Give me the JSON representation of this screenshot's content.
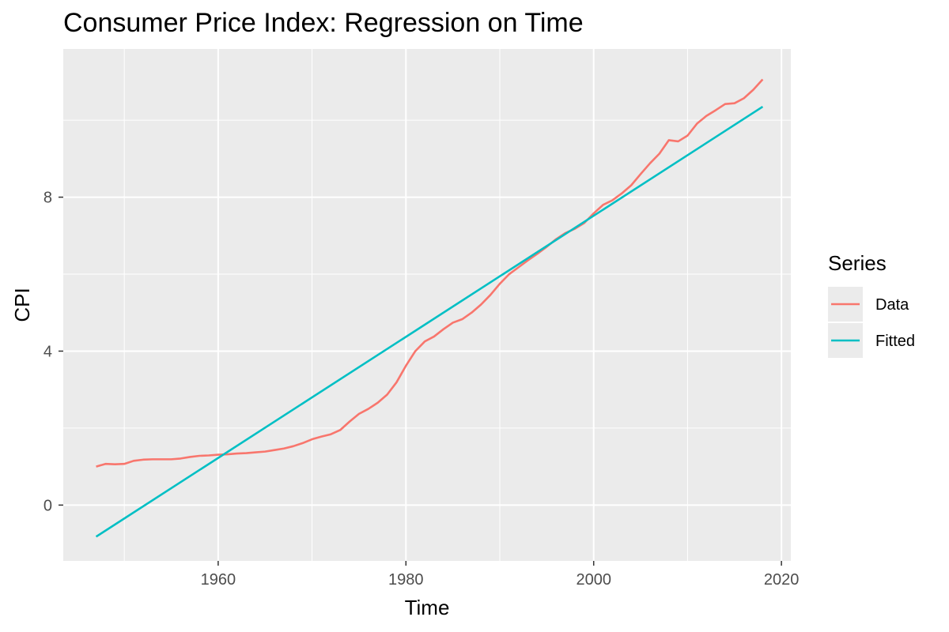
{
  "chart_data": {
    "type": "line",
    "title": "Consumer Price Index: Regression on Time",
    "xlabel": "Time",
    "ylabel": "CPI",
    "xlim": [
      1943.5,
      2021
    ],
    "ylim": [
      -1.45,
      11.85
    ],
    "xticks": [
      1960,
      1980,
      2000,
      2020
    ],
    "yticks": [
      0,
      4,
      8
    ],
    "xtick_labels": [
      "1960",
      "1980",
      "2000",
      "2020"
    ],
    "ytick_labels": [
      "0",
      "4",
      "8"
    ],
    "grid": true,
    "legend": {
      "title": "Series",
      "position": "right",
      "entries": [
        "Data",
        "Fitted"
      ]
    },
    "series": [
      {
        "name": "Data",
        "color": "#F8766D",
        "x": [
          1947,
          1948,
          1949,
          1950,
          1951,
          1952,
          1953,
          1954,
          1955,
          1956,
          1957,
          1958,
          1959,
          1960,
          1961,
          1962,
          1963,
          1964,
          1965,
          1966,
          1967,
          1968,
          1969,
          1970,
          1971,
          1972,
          1973,
          1974,
          1975,
          1976,
          1977,
          1978,
          1979,
          1980,
          1981,
          1982,
          1983,
          1984,
          1985,
          1986,
          1987,
          1988,
          1989,
          1990,
          1991,
          1992,
          1993,
          1994,
          1995,
          1996,
          1997,
          1998,
          1999,
          2000,
          2001,
          2002,
          2003,
          2004,
          2005,
          2006,
          2007,
          2008,
          2009,
          2010,
          2011,
          2012,
          2013,
          2014,
          2015,
          2016,
          2017,
          2018
        ],
        "values": [
          1.0,
          1.07,
          1.06,
          1.07,
          1.15,
          1.18,
          1.19,
          1.19,
          1.19,
          1.21,
          1.25,
          1.28,
          1.29,
          1.31,
          1.32,
          1.34,
          1.35,
          1.37,
          1.39,
          1.43,
          1.47,
          1.53,
          1.61,
          1.71,
          1.78,
          1.84,
          1.95,
          2.17,
          2.37,
          2.5,
          2.66,
          2.87,
          3.19,
          3.62,
          4.0,
          4.25,
          4.38,
          4.57,
          4.74,
          4.83,
          5.0,
          5.21,
          5.46,
          5.75,
          6.0,
          6.18,
          6.36,
          6.53,
          6.71,
          6.91,
          7.07,
          7.18,
          7.33,
          7.58,
          7.8,
          7.92,
          8.1,
          8.31,
          8.6,
          8.88,
          9.13,
          9.48,
          9.45,
          9.6,
          9.91,
          10.11,
          10.26,
          10.42,
          10.44,
          10.57,
          10.79,
          11.06
        ]
      },
      {
        "name": "Fitted",
        "color": "#00BFC4",
        "x": [
          1947,
          2018
        ],
        "values": [
          -0.82,
          10.35
        ]
      }
    ]
  }
}
